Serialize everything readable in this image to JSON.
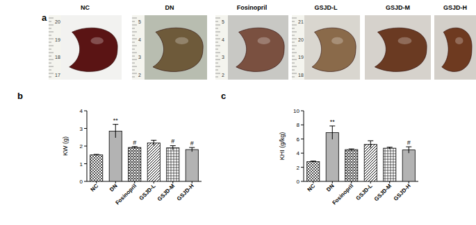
{
  "panel_a": {
    "label": "a",
    "photos": [
      {
        "label": "NC",
        "ruler_labels": [
          "20",
          "19",
          "18",
          "17"
        ]
      },
      {
        "label": "DN",
        "ruler_labels": [
          "5",
          "4",
          "3",
          "2"
        ]
      },
      {
        "label": "Fosinopril",
        "ruler_labels": [
          "5",
          "4",
          "3",
          "2"
        ]
      },
      {
        "label": "GSJD-L",
        "ruler_labels": [
          "21",
          "20",
          "19",
          "18"
        ]
      },
      {
        "label": "GSJD-M",
        "ruler_labels": []
      },
      {
        "label": "GSJD-H",
        "ruler_labels": []
      }
    ]
  },
  "chart_data": [
    {
      "type": "bar",
      "panel_label": "b",
      "y_label": "KW (g)",
      "categories": [
        "NC",
        "DN",
        "Fosinopril",
        "GSJD-L",
        "GSJD-M",
        "GSJD-H"
      ],
      "values": [
        1.5,
        2.85,
        1.92,
        2.18,
        1.9,
        1.8
      ],
      "errors": [
        0.03,
        0.38,
        0.05,
        0.15,
        0.12,
        0.12
      ],
      "ylim": [
        0,
        4
      ],
      "yticks": [
        0,
        1,
        2,
        3,
        4
      ],
      "annotations": [
        {
          "category": "DN",
          "text": "**"
        },
        {
          "category": "Fosinopril",
          "text": "#"
        },
        {
          "category": "GSJD-M",
          "text": "#"
        },
        {
          "category": "GSJD-H",
          "text": "#"
        }
      ]
    },
    {
      "type": "bar",
      "panel_label": "c",
      "y_label": "KHI (g/kg)",
      "categories": [
        "NC",
        "DN",
        "Fosinopril",
        "GSJD-L",
        "GSJD-M",
        "GSJD-H"
      ],
      "values": [
        2.8,
        6.9,
        4.5,
        5.25,
        4.7,
        4.45
      ],
      "errors": [
        0.08,
        0.95,
        0.1,
        0.5,
        0.15,
        0.45
      ],
      "ylim": [
        0,
        10
      ],
      "yticks": [
        0,
        2,
        4,
        6,
        8,
        10
      ],
      "annotations": [
        {
          "category": "DN",
          "text": "**"
        },
        {
          "category": "GSJD-H",
          "text": "#"
        }
      ]
    }
  ]
}
